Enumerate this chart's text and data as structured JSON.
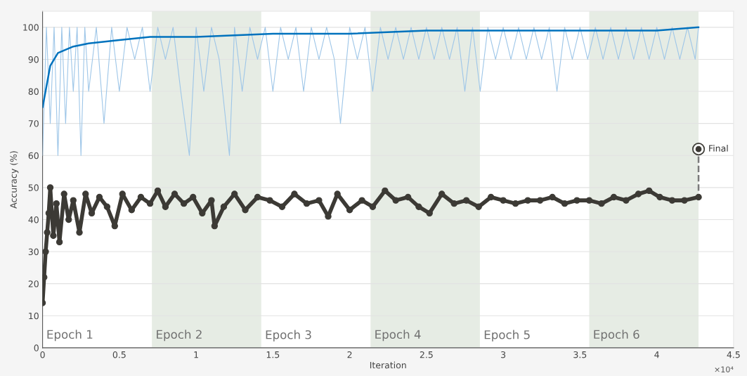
{
  "chart_data": {
    "type": "line",
    "xlabel": "Iteration",
    "ylabel": "Accuracy (%)",
    "xlim": [
      0,
      4.5
    ],
    "ylim": [
      0,
      105
    ],
    "xticks": [
      0,
      0.5,
      1,
      1.5,
      2,
      2.5,
      3,
      3.5,
      4,
      4.5
    ],
    "yticks": [
      0,
      10,
      20,
      30,
      40,
      50,
      60,
      70,
      80,
      90,
      100
    ],
    "grid": "y",
    "legend": false,
    "bands": [
      {
        "axis": "x",
        "from": 0.712,
        "to": 1.424,
        "label": "Epoch 2",
        "color": "#e6ece4"
      },
      {
        "axis": "x",
        "from": 2.136,
        "to": 2.848,
        "label": "Epoch 4",
        "color": "#e6ece4"
      },
      {
        "axis": "x",
        "from": 3.56,
        "to": 4.272,
        "label": "Epoch 6",
        "color": "#e6ece4"
      }
    ],
    "series": [
      {
        "color": "#9ec6e8",
        "marker": "none",
        "x": [
          0,
          0.025,
          0.05,
          0.075,
          0.1,
          0.125,
          0.15,
          0.175,
          0.2,
          0.225,
          0.25,
          0.275,
          0.3,
          0.35,
          0.4,
          0.45,
          0.5,
          0.55,
          0.6,
          0.65,
          0.7,
          0.75,
          0.8,
          0.85,
          0.9,
          0.956,
          1.0,
          1.05,
          1.1,
          1.15,
          1.217,
          1.25,
          1.3,
          1.35,
          1.4,
          1.45,
          1.5,
          1.55,
          1.6,
          1.65,
          1.7,
          1.75,
          1.8,
          1.85,
          1.9,
          1.94,
          2.0,
          2.05,
          2.1,
          2.15,
          2.2,
          2.25,
          2.3,
          2.35,
          2.4,
          2.45,
          2.5,
          2.55,
          2.6,
          2.65,
          2.7,
          2.75,
          2.8,
          2.85,
          2.9,
          2.95,
          3.0,
          3.05,
          3.1,
          3.15,
          3.2,
          3.25,
          3.3,
          3.35,
          3.4,
          3.45,
          3.5,
          3.55,
          3.6,
          3.65,
          3.7,
          3.75,
          3.8,
          3.85,
          3.9,
          3.95,
          4.0,
          4.05,
          4.1,
          4.15,
          4.2,
          4.25,
          4.272
        ],
        "values": [
          60,
          100,
          70,
          100,
          60,
          100,
          70,
          100,
          80,
          100,
          60,
          100,
          80,
          100,
          70,
          100,
          80,
          100,
          90,
          100,
          80,
          100,
          90,
          100,
          80,
          60,
          100,
          80,
          100,
          90,
          60,
          100,
          80,
          100,
          90,
          100,
          80,
          100,
          90,
          100,
          80,
          100,
          90,
          100,
          90,
          70,
          100,
          90,
          100,
          80,
          100,
          90,
          100,
          90,
          100,
          90,
          100,
          90,
          100,
          90,
          100,
          80,
          100,
          80,
          100,
          90,
          100,
          90,
          100,
          90,
          100,
          90,
          100,
          80,
          100,
          90,
          100,
          90,
          100,
          90,
          100,
          90,
          100,
          90,
          100,
          90,
          100,
          90,
          100,
          90,
          100,
          90,
          100
        ]
      },
      {
        "color": "#0072bd",
        "marker": "none",
        "x": [
          0,
          0.05,
          0.1,
          0.2,
          0.3,
          0.5,
          0.7,
          1.0,
          1.5,
          2.0,
          2.5,
          3.0,
          3.5,
          4.0,
          4.272
        ],
        "values": [
          75,
          88,
          92,
          94,
          95,
          96,
          97,
          97,
          98,
          98,
          99,
          99,
          99,
          99,
          100
        ]
      },
      {
        "color": "#3c3a35",
        "marker": "circle",
        "x": [
          0,
          0.01,
          0.02,
          0.03,
          0.04,
          0.05,
          0.07,
          0.09,
          0.11,
          0.14,
          0.17,
          0.2,
          0.24,
          0.28,
          0.32,
          0.37,
          0.42,
          0.47,
          0.52,
          0.58,
          0.64,
          0.7,
          0.75,
          0.8,
          0.86,
          0.92,
          0.98,
          1.04,
          1.1,
          1.12,
          1.18,
          1.25,
          1.32,
          1.4,
          1.48,
          1.56,
          1.64,
          1.72,
          1.8,
          1.86,
          1.92,
          2.0,
          2.08,
          2.15,
          2.23,
          2.3,
          2.38,
          2.45,
          2.52,
          2.6,
          2.68,
          2.76,
          2.84,
          2.92,
          3.0,
          3.08,
          3.16,
          3.24,
          3.32,
          3.4,
          3.48,
          3.56,
          3.64,
          3.72,
          3.8,
          3.88,
          3.95,
          4.02,
          4.1,
          4.18,
          4.272
        ],
        "values": [
          14,
          22,
          30,
          36,
          42,
          50,
          35,
          45,
          33,
          48,
          40,
          46,
          36,
          48,
          42,
          47,
          44,
          38,
          48,
          43,
          47,
          45,
          49,
          44,
          48,
          45,
          47,
          42,
          46,
          38,
          44,
          48,
          43,
          47,
          46,
          44,
          48,
          45,
          46,
          41,
          48,
          43,
          46,
          44,
          49,
          46,
          47,
          44,
          42,
          48,
          45,
          46,
          44,
          47,
          46,
          45,
          46,
          46,
          47,
          45,
          46,
          46,
          45,
          47,
          46,
          48,
          49,
          47,
          46,
          46,
          47
        ]
      },
      {
        "color": "#7a7a7a",
        "marker": "none",
        "line_style": "dashed",
        "x": [
          4.272,
          4.272
        ],
        "values": [
          49,
          60
        ]
      },
      {
        "type": "scatter",
        "color": "#3c3a35",
        "marker": "circle",
        "x": [
          4.272
        ],
        "values": [
          62
        ]
      }
    ],
    "annotations": [
      {
        "text": "Final",
        "x": 4.272,
        "y": 62
      },
      "Epoch 1",
      {
        "text": "Epoch 3",
        "x": 1.424,
        "y": 2
      },
      {
        "text": "Epoch 5",
        "x": 2.848,
        "y": 2
      },
      "×10⁴"
    ]
  }
}
